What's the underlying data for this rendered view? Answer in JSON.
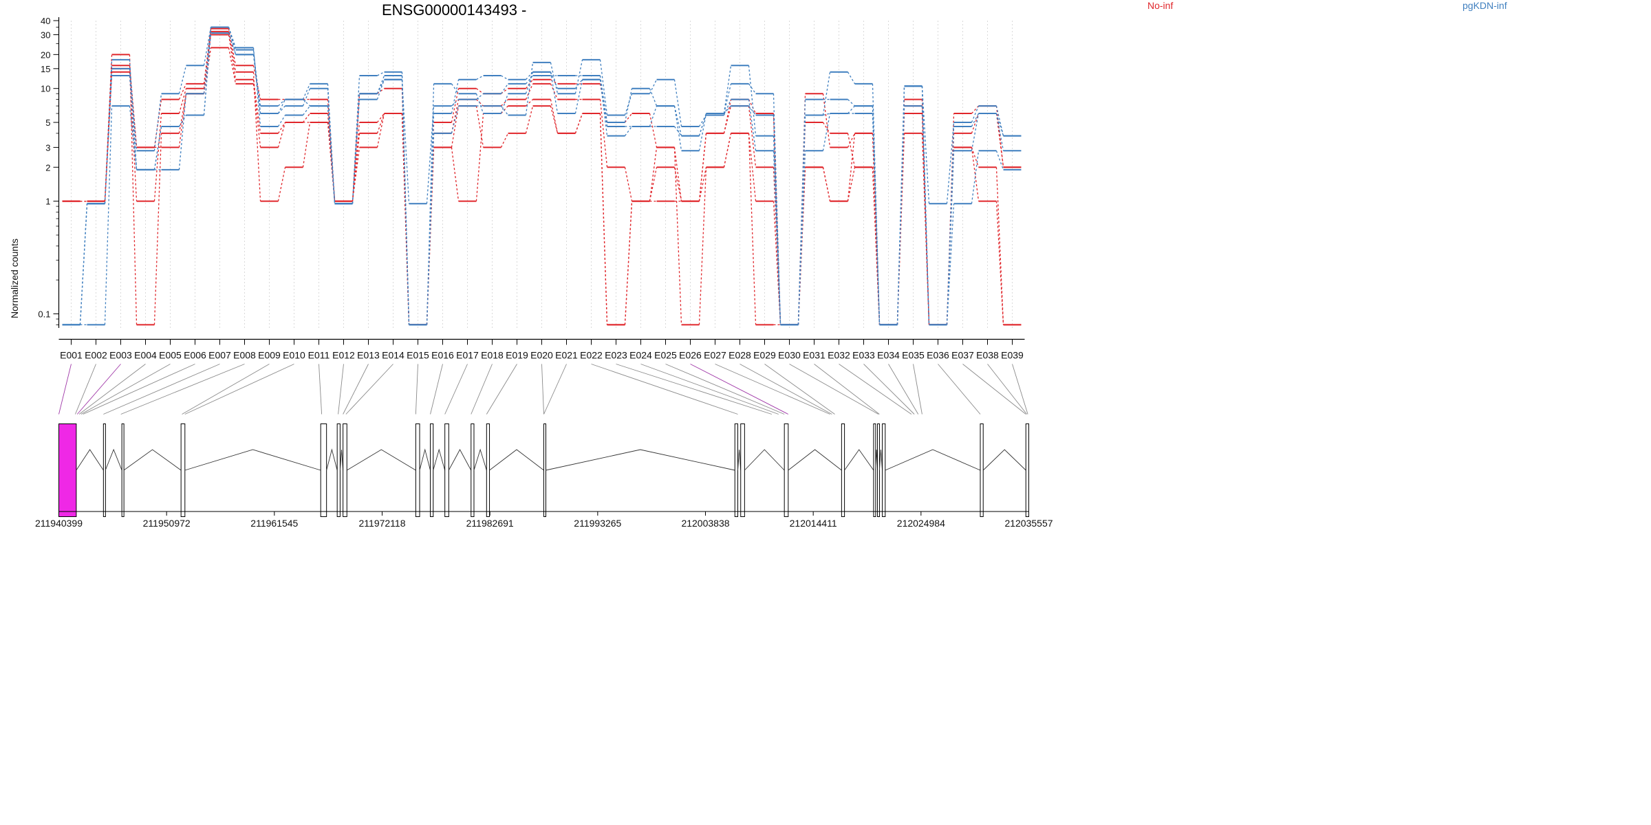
{
  "title": "ENSG00000143493 -",
  "legend": [
    {
      "label": "No-inf",
      "color": "#e0262b"
    },
    {
      "label": "pgKDN-inf",
      "color": "#3f7fbf"
    }
  ],
  "colors": {
    "highlight_exon": "#ef28e6",
    "highlight_connector": "#a038a8",
    "axis": "#000000",
    "grid": "#d9d9d9",
    "connector": "#8a8a8a"
  },
  "chart_data": {
    "type": "line",
    "title": "ENSG00000143493 -",
    "xlabel": "",
    "ylabel": "Normalized counts",
    "y_scale": "log",
    "ylim": [
      0.075,
      40
    ],
    "y_ticks": [
      0.1,
      1,
      2,
      3,
      5,
      10,
      15,
      20,
      30,
      40
    ],
    "y_tick_labels": [
      "0.1",
      "1",
      "2",
      "3",
      "5",
      "10",
      "15",
      "20",
      "30",
      "40"
    ],
    "grid": "vertical dotted",
    "legend_position": "top",
    "categories": [
      "E001",
      "E002",
      "E003",
      "E004",
      "E005",
      "E006",
      "E007",
      "E008",
      "E009",
      "E010",
      "E011",
      "E012",
      "E013",
      "E014",
      "E015",
      "E016",
      "E017",
      "E018",
      "E019",
      "E020",
      "E021",
      "E022",
      "E023",
      "E024",
      "E025",
      "E026",
      "E027",
      "E028",
      "E029",
      "E030",
      "E031",
      "E032",
      "E033",
      "E034",
      "E035",
      "E036",
      "E037",
      "E038",
      "E039"
    ],
    "series": [
      {
        "group": "No-inf",
        "color": "#e0262b",
        "values": [
          1,
          1,
          16,
          3,
          8,
          11,
          34,
          16,
          8,
          8,
          8,
          1,
          9,
          10,
          0.08,
          5,
          10,
          9,
          10,
          12,
          11,
          11,
          5,
          6,
          3,
          1,
          4,
          8,
          6,
          0.08,
          9,
          3,
          4,
          0.08,
          8,
          0.08,
          6,
          7,
          2
        ]
      },
      {
        "group": "No-inf",
        "color": "#e0262b",
        "values": [
          1,
          1,
          14,
          1,
          6,
          10,
          30,
          12,
          4,
          5,
          6,
          1,
          5,
          6,
          0.08,
          4,
          8,
          7,
          8,
          11,
          8,
          8,
          2,
          1,
          2,
          1,
          4,
          7,
          2,
          0.08,
          5,
          4,
          2,
          0.08,
          7,
          0.08,
          4,
          6,
          2
        ]
      },
      {
        "group": "No-inf",
        "color": "#e0262b",
        "values": [
          1,
          1,
          20,
          0.08,
          4,
          9,
          23,
          11,
          3,
          5,
          5,
          1,
          4,
          6,
          0.08,
          3,
          7,
          3,
          4,
          7,
          4,
          6,
          0.08,
          1,
          1,
          1,
          2,
          4,
          1,
          0.08,
          2,
          1,
          2,
          0.08,
          6,
          0.08,
          3,
          2,
          0.08
        ]
      },
      {
        "group": "No-inf",
        "color": "#e0262b",
        "values": [
          1,
          1,
          15,
          3,
          3,
          9,
          32,
          14,
          1,
          2,
          5,
          1,
          3,
          6,
          0.08,
          3,
          1,
          6,
          7,
          8,
          4,
          6,
          0.08,
          1,
          3,
          0.08,
          2,
          4,
          0.08,
          0.08,
          2,
          1,
          4,
          0.08,
          4,
          0.08,
          3,
          1,
          0.08
        ]
      },
      {
        "group": "pgKDN-inf",
        "color": "#3f7fbf",
        "values": [
          0.08,
          0.95,
          18,
          1.9,
          4.6,
          5.8,
          35,
          20,
          7,
          8,
          11,
          0.95,
          9,
          12,
          0.95,
          7,
          8,
          9,
          11,
          13,
          13,
          13,
          5,
          10,
          7,
          2.8,
          6,
          16,
          3.8,
          0.08,
          8,
          8,
          7,
          0.08,
          10.5,
          0.95,
          5,
          7,
          3.8
        ]
      },
      {
        "group": "pgKDN-inf",
        "color": "#3f7fbf",
        "values": [
          0.08,
          0.95,
          15,
          2.8,
          9,
          16,
          35,
          22,
          6,
          7,
          10,
          0.95,
          8,
          12,
          0.08,
          6,
          12,
          13,
          12,
          14,
          10,
          12,
          4.6,
          4.6,
          4.6,
          3.8,
          6,
          11,
          9,
          0.08,
          5.8,
          14,
          11,
          0.08,
          7,
          0.08,
          4.6,
          6,
          2.8
        ]
      },
      {
        "group": "pgKDN-inf",
        "color": "#3f7fbf",
        "values": [
          0.08,
          0.08,
          7,
          1.9,
          1.9,
          9,
          35,
          23,
          4.6,
          5.8,
          7,
          0.95,
          13,
          14,
          0.08,
          4,
          7,
          7,
          5.8,
          17,
          9,
          18,
          5.8,
          9,
          12,
          4.6,
          5.8,
          8,
          2.8,
          0.08,
          2.8,
          6,
          6,
          0.08,
          10.5,
          0.08,
          0.95,
          2.8,
          1.9
        ]
      },
      {
        "group": "pgKDN-inf",
        "color": "#3f7fbf",
        "values": [
          0.08,
          0.95,
          13,
          1.9,
          4.6,
          5.8,
          31,
          20,
          6,
          8,
          7,
          0.95,
          9,
          13,
          0.08,
          11,
          9,
          6,
          9,
          14,
          6,
          12,
          3.8,
          4.6,
          7,
          3.8,
          6,
          7,
          5.8,
          0.08,
          5.8,
          6,
          7,
          0.08,
          10.5,
          0.08,
          2.8,
          6,
          3.8
        ]
      }
    ]
  },
  "gene_model": {
    "coord_ticks": [
      "211940399",
      "211950972",
      "211961545",
      "211972118",
      "211982691",
      "211993265",
      "212003838",
      "212014411",
      "212024984",
      "212035557"
    ],
    "highlighted_exons": [
      "E001",
      "E003",
      "E026"
    ]
  }
}
